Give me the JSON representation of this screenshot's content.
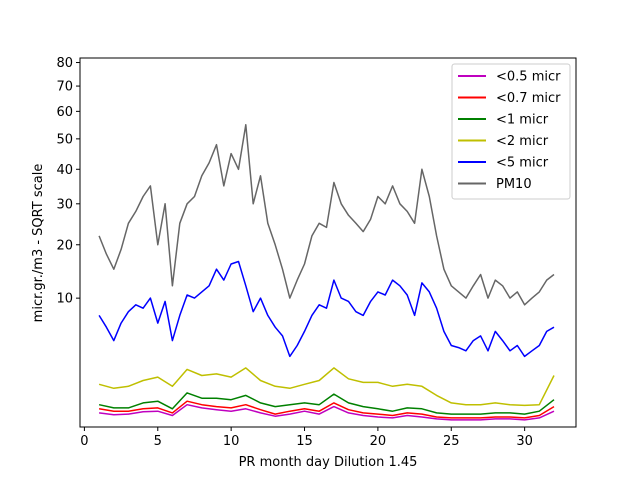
{
  "chart_data": {
    "type": "line",
    "title": "",
    "xlabel": "PR month day  Dilution 1.45",
    "ylabel": "micr.gr./m3 - SQRT scale",
    "y_scale": "sqrt",
    "xlim": [
      -0.3,
      33.5
    ],
    "ylim": [
      0,
      82
    ],
    "x_ticks": [
      0,
      5,
      10,
      15,
      20,
      25,
      30
    ],
    "y_ticks": [
      10,
      20,
      30,
      40,
      50,
      60,
      70,
      80
    ],
    "grid": false,
    "legend_position": "top-right",
    "series": [
      {
        "name": "<0.5 micr",
        "color": "#bf00bf",
        "x": [
          1,
          2,
          3,
          4,
          5,
          6,
          7,
          8,
          9,
          10,
          11,
          12,
          13,
          14,
          15,
          16,
          17,
          18,
          19,
          20,
          21,
          22,
          23,
          24,
          25,
          26,
          27,
          28,
          29,
          30,
          31,
          32
        ],
        "values": [
          0.12,
          0.09,
          0.1,
          0.14,
          0.15,
          0.08,
          0.3,
          0.22,
          0.18,
          0.15,
          0.2,
          0.12,
          0.07,
          0.1,
          0.15,
          0.1,
          0.25,
          0.12,
          0.08,
          0.06,
          0.05,
          0.08,
          0.06,
          0.04,
          0.03,
          0.03,
          0.03,
          0.04,
          0.04,
          0.03,
          0.05,
          0.15
        ]
      },
      {
        "name": "<0.7 micr",
        "color": "#ff0000",
        "x": [
          1,
          2,
          3,
          4,
          5,
          6,
          7,
          8,
          9,
          10,
          11,
          12,
          13,
          14,
          15,
          16,
          17,
          18,
          19,
          20,
          21,
          22,
          23,
          24,
          25,
          26,
          27,
          28,
          29,
          30,
          31,
          32
        ],
        "values": [
          0.2,
          0.15,
          0.15,
          0.2,
          0.22,
          0.12,
          0.4,
          0.3,
          0.25,
          0.22,
          0.3,
          0.18,
          0.1,
          0.15,
          0.2,
          0.15,
          0.35,
          0.18,
          0.12,
          0.1,
          0.08,
          0.12,
          0.1,
          0.06,
          0.05,
          0.05,
          0.05,
          0.06,
          0.06,
          0.05,
          0.08,
          0.25
        ]
      },
      {
        "name": "<1 micr",
        "color": "#008000",
        "x": [
          1,
          2,
          3,
          4,
          5,
          6,
          7,
          8,
          9,
          10,
          11,
          12,
          13,
          14,
          15,
          16,
          17,
          18,
          19,
          20,
          21,
          22,
          23,
          24,
          25,
          26,
          27,
          28,
          29,
          30,
          31,
          32
        ],
        "values": [
          0.3,
          0.22,
          0.22,
          0.35,
          0.4,
          0.2,
          0.7,
          0.5,
          0.5,
          0.45,
          0.6,
          0.35,
          0.25,
          0.3,
          0.35,
          0.3,
          0.65,
          0.35,
          0.25,
          0.2,
          0.15,
          0.22,
          0.2,
          0.12,
          0.1,
          0.1,
          0.1,
          0.12,
          0.12,
          0.1,
          0.15,
          0.45
        ]
      },
      {
        "name": "<2 micr",
        "color": "#bfbf00",
        "x": [
          1,
          2,
          3,
          4,
          5,
          6,
          7,
          8,
          9,
          10,
          11,
          12,
          13,
          14,
          15,
          16,
          17,
          18,
          19,
          20,
          21,
          22,
          23,
          24,
          25,
          26,
          27,
          28,
          29,
          30,
          31,
          32
        ],
        "values": [
          1.1,
          0.9,
          1.0,
          1.3,
          1.5,
          1.0,
          2.0,
          1.6,
          1.7,
          1.5,
          2.1,
          1.3,
          1.0,
          0.9,
          1.1,
          1.3,
          2.1,
          1.4,
          1.2,
          1.2,
          1.0,
          1.1,
          1.0,
          0.6,
          0.35,
          0.3,
          0.3,
          0.35,
          0.3,
          0.28,
          0.3,
          1.6
        ]
      },
      {
        "name": "<5 micr",
        "color": "#0000ff",
        "x": [
          1,
          1.5,
          2,
          2.5,
          3,
          3.5,
          4,
          4.5,
          5,
          5.5,
          6,
          6.5,
          7,
          7.5,
          8,
          8.5,
          9,
          9.5,
          10,
          10.5,
          11,
          11.5,
          12,
          12.5,
          13,
          13.5,
          14,
          14.5,
          15,
          15.5,
          16,
          16.5,
          17,
          17.5,
          18,
          18.5,
          19,
          19.5,
          20,
          20.5,
          21,
          21.5,
          22,
          22.5,
          23,
          23.5,
          24,
          24.5,
          25,
          25.5,
          26,
          26.5,
          27,
          27.5,
          28,
          28.5,
          29,
          29.5,
          30,
          30.5,
          31,
          31.5,
          32
        ],
        "values": [
          7.5,
          6.0,
          4.5,
          6.5,
          8.0,
          9.0,
          8.5,
          10.0,
          6.5,
          9.5,
          4.5,
          7.5,
          10.5,
          10.0,
          11.0,
          12.0,
          15.0,
          13.0,
          16.0,
          16.5,
          12.0,
          8.0,
          10.0,
          7.5,
          6.0,
          5.0,
          3.0,
          4.0,
          5.5,
          7.5,
          9.0,
          8.5,
          13.0,
          10.0,
          9.5,
          8.0,
          7.5,
          9.5,
          11.0,
          10.5,
          13.0,
          12.0,
          10.5,
          7.5,
          12.5,
          11.0,
          8.5,
          5.5,
          4.0,
          3.8,
          3.5,
          4.5,
          5.0,
          3.5,
          5.5,
          4.5,
          3.5,
          4.0,
          3.0,
          3.5,
          4.0,
          5.5,
          6.0
        ]
      },
      {
        "name": "PM10",
        "color": "#666666",
        "x": [
          1,
          1.5,
          2,
          2.5,
          3,
          3.5,
          4,
          4.5,
          5,
          5.5,
          6,
          6.5,
          7,
          7.5,
          8,
          8.5,
          9,
          9.5,
          10,
          10.5,
          11,
          11.5,
          12,
          12.5,
          13,
          13.5,
          14,
          14.5,
          15,
          15.5,
          16,
          16.5,
          17,
          17.5,
          18,
          18.5,
          19,
          19.5,
          20,
          20.5,
          21,
          21.5,
          22,
          22.5,
          23,
          23.5,
          24,
          24.5,
          25,
          25.5,
          26,
          26.5,
          27,
          27.5,
          28,
          28.5,
          29,
          29.5,
          30,
          30.5,
          31,
          31.5,
          32
        ],
        "values": [
          22.0,
          18.0,
          15.0,
          19.0,
          25.0,
          28.0,
          32.0,
          35.0,
          20.0,
          30.0,
          12.0,
          25.0,
          30.0,
          32.0,
          38.0,
          42.0,
          48.0,
          35.0,
          45.0,
          40.0,
          55.0,
          30.0,
          38.0,
          25.0,
          20.0,
          15.0,
          10.0,
          13.0,
          16.0,
          22.0,
          25.0,
          24.0,
          36.0,
          30.0,
          27.0,
          25.0,
          23.0,
          26.0,
          32.0,
          30.0,
          35.0,
          30.0,
          28.0,
          25.0,
          40.0,
          32.0,
          22.0,
          15.0,
          12.0,
          11.0,
          10.0,
          12.0,
          14.0,
          10.0,
          13.0,
          12.0,
          10.0,
          11.0,
          9.0,
          10.0,
          11.0,
          13.0,
          14.0
        ]
      }
    ]
  }
}
